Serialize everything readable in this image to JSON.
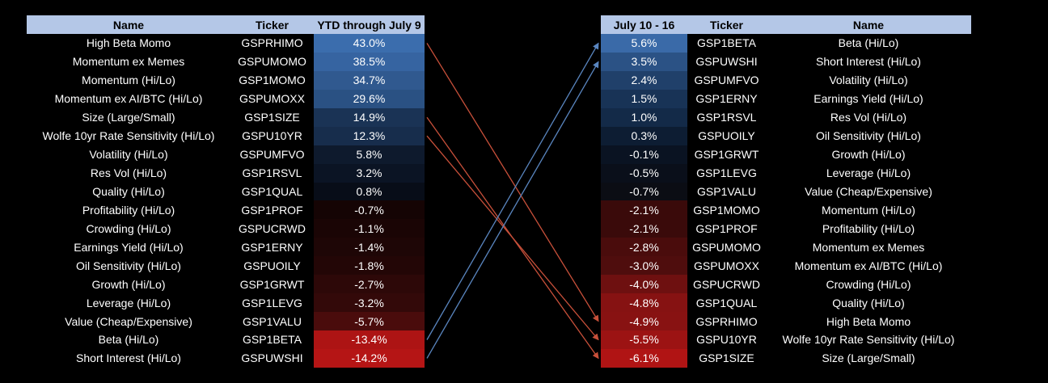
{
  "left_table": {
    "headers": {
      "name": "Name",
      "ticker": "Ticker",
      "value": "YTD through July 9"
    },
    "rows": [
      {
        "name": "High Beta Momo",
        "ticker": "GSPRHIMO",
        "value": "43.0%",
        "color": "#3b6dad"
      },
      {
        "name": "Momentum ex Memes",
        "ticker": "GSPUMOMO",
        "value": "38.5%",
        "color": "#3664a1"
      },
      {
        "name": "Momentum (Hi/Lo)",
        "ticker": "GSP1MOMO",
        "value": "34.7%",
        "color": "#30598f"
      },
      {
        "name": "Momentum ex AI/BTC  (Hi/Lo)",
        "ticker": "GSPUMOXX",
        "value": "29.6%",
        "color": "#2a5183"
      },
      {
        "name": "Size (Large/Small)",
        "ticker": "GSP1SIZE",
        "value": "14.9%",
        "color": "#1a3355"
      },
      {
        "name": "Wolfe 10yr Rate Sensitivity (Hi/Lo)",
        "ticker": "GSPU10YR",
        "value": "12.3%",
        "color": "#172d4c"
      },
      {
        "name": "Volatility (Hi/Lo)",
        "ticker": "GSPUMFVO",
        "value": "5.8%",
        "color": "#0e1a2d"
      },
      {
        "name": "Res Vol (Hi/Lo)",
        "ticker": "GSP1RSVL",
        "value": "3.2%",
        "color": "#0b1424"
      },
      {
        "name": "Quality (Hi/Lo)",
        "ticker": "GSP1QUAL",
        "value": "0.8%",
        "color": "#080d18"
      },
      {
        "name": "Profitability (Hi/Lo)",
        "ticker": "GSP1PROF",
        "value": "-0.7%",
        "color": "#150404"
      },
      {
        "name": "Crowding (Hi/Lo)",
        "ticker": "GSPUCRWD",
        "value": "-1.1%",
        "color": "#1a0505"
      },
      {
        "name": "Earnings Yield (Hi/Lo)",
        "ticker": "GSP1ERNY",
        "value": "-1.4%",
        "color": "#1e0606"
      },
      {
        "name": "Oil Sensitivity (Hi/Lo)",
        "ticker": "GSPUOILY",
        "value": "-1.8%",
        "color": "#230606"
      },
      {
        "name": "Growth (Hi/Lo)",
        "ticker": "GSP1GRWT",
        "value": "-2.7%",
        "color": "#2d0808"
      },
      {
        "name": "Leverage (Hi/Lo)",
        "ticker": "GSP1LEVG",
        "value": "-3.2%",
        "color": "#330909"
      },
      {
        "name": "Value (Cheap/Expensive)",
        "ticker": "GSP1VALU",
        "value": "-5.7%",
        "color": "#4a0c0c"
      },
      {
        "name": "Beta (Hi/Lo)",
        "ticker": "GSP1BETA",
        "value": "-13.4%",
        "color": "#ad1414"
      },
      {
        "name": "Short Interest (Hi/Lo)",
        "ticker": "GSPUWSHI",
        "value": "-14.2%",
        "color": "#b51515"
      }
    ]
  },
  "right_table": {
    "headers": {
      "value": "July 10 - 16",
      "ticker": "Ticker",
      "name": "Name"
    },
    "rows": [
      {
        "value": "5.6%",
        "ticker": "GSP1BETA",
        "name": "Beta (Hi/Lo)",
        "color": "#3a6aa8"
      },
      {
        "value": "3.5%",
        "ticker": "GSPUWSHI",
        "name": "Short Interest (Hi/Lo)",
        "color": "#2b5285"
      },
      {
        "value": "2.4%",
        "ticker": "GSPUMFVO",
        "name": "Volatility (Hi/Lo)",
        "color": "#20406a"
      },
      {
        "value": "1.5%",
        "ticker": "GSP1ERNY",
        "name": "Earnings Yield (Hi/Lo)",
        "color": "#183356"
      },
      {
        "value": "1.0%",
        "ticker": "GSP1RSVL",
        "name": "Res Vol (Hi/Lo)",
        "color": "#132a48"
      },
      {
        "value": "0.3%",
        "ticker": "GSPUOILY",
        "name": "Oil Sensitivity (Hi/Lo)",
        "color": "#0d1d33"
      },
      {
        "value": "-0.1%",
        "ticker": "GSP1GRWT",
        "name": "Growth (Hi/Lo)",
        "color": "#0a1322"
      },
      {
        "value": "-0.5%",
        "ticker": "GSP1LEVG",
        "name": "Leverage (Hi/Lo)",
        "color": "#0a0f1a"
      },
      {
        "value": "-0.7%",
        "ticker": "GSP1VALU",
        "name": "Value (Cheap/Expensive)",
        "color": "#0b0d14"
      },
      {
        "value": "-2.1%",
        "ticker": "GSP1MOMO",
        "name": "Momentum (Hi/Lo)",
        "color": "#3a0a0a"
      },
      {
        "value": "-2.1%",
        "ticker": "GSP1PROF",
        "name": "Profitability (Hi/Lo)",
        "color": "#3a0a0a"
      },
      {
        "value": "-2.8%",
        "ticker": "GSPUMOMO",
        "name": "Momentum ex Memes",
        "color": "#4a0c0c"
      },
      {
        "value": "-3.0%",
        "ticker": "GSPUMOXX",
        "name": "Momentum ex AI/BTC  (Hi/Lo)",
        "color": "#4f0d0d"
      },
      {
        "value": "-4.0%",
        "ticker": "GSPUCRWD",
        "name": "Crowding (Hi/Lo)",
        "color": "#6e1010"
      },
      {
        "value": "-4.8%",
        "ticker": "GSP1QUAL",
        "name": "Quality (Hi/Lo)",
        "color": "#861212"
      },
      {
        "value": "-4.9%",
        "ticker": "GSPRHIMO",
        "name": "High Beta Momo",
        "color": "#881212"
      },
      {
        "value": "-5.5%",
        "ticker": "GSPU10YR",
        "name": "Wolfe 10yr Rate Sensitivity (Hi/Lo)",
        "color": "#9c1313"
      },
      {
        "value": "-6.1%",
        "ticker": "GSP1SIZE",
        "name": "Size (Large/Small)",
        "color": "#b01414"
      }
    ]
  },
  "arrows": [
    {
      "from_left_row": 0,
      "to_right_row": 15,
      "color": "#c8503a"
    },
    {
      "from_left_row": 4,
      "to_right_row": 17,
      "color": "#c8503a"
    },
    {
      "from_left_row": 5,
      "to_right_row": 16,
      "color": "#c8503a"
    },
    {
      "from_left_row": 16,
      "to_right_row": 0,
      "color": "#5a86c0"
    },
    {
      "from_left_row": 17,
      "to_right_row": 1,
      "color": "#5a86c0"
    }
  ]
}
